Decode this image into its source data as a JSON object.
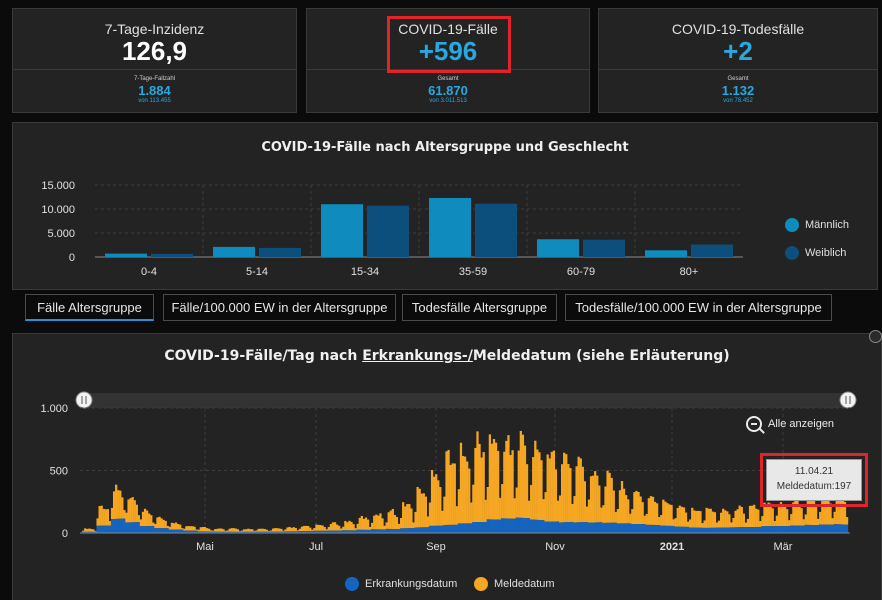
{
  "kpis": [
    {
      "title": "7-Tage-Inzidenz",
      "value": "126,9",
      "sublabel": "7-Tage-Fallzahl",
      "subvalue": "1.884",
      "subnote": "von 113.455",
      "value_color": "#ffffff"
    },
    {
      "title": "COVID-19-Fälle",
      "value": "+596",
      "sublabel": "Gesamt",
      "subvalue": "61.870",
      "subnote": "von 3.011.513",
      "value_color": "#29a8e0"
    },
    {
      "title": "COVID-19-Todesfälle",
      "value": "+2",
      "sublabel": "Gesamt",
      "subvalue": "1.132",
      "subnote": "von 78.452",
      "value_color": "#29a8e0"
    }
  ],
  "age_chart": {
    "title": "COVID-19-Fälle nach Altersgruppe und Geschlecht",
    "legend": [
      {
        "label": "Männlich",
        "color": "#0f8bbd"
      },
      {
        "label": "Weiblich",
        "color": "#0d4f7c"
      }
    ]
  },
  "tabs": [
    {
      "label": "Fälle Altersgruppe"
    },
    {
      "label": "Fälle/100.000 EW in der Altersgruppe"
    },
    {
      "label": "Todesfälle Altersgruppe"
    },
    {
      "label": "Todesfälle/100.000 EW in der Altersgruppe"
    }
  ],
  "daily_chart": {
    "title_before": "COVID-19-Fälle/Tag nach ",
    "title_link": "Erkrankungs-/",
    "title_after": "Meldedatum (siehe Erläuterung)",
    "zoom_label": "Alle anzeigen",
    "tooltip": {
      "date": "11.04.21",
      "label": "Meldedatum",
      "value": "197"
    },
    "legend": [
      {
        "label": "Erkrankungsdatum",
        "color": "#1565c0"
      },
      {
        "label": "Meldedatum",
        "color": "#f5a623"
      }
    ]
  },
  "chart_data": [
    {
      "type": "bar",
      "title": "COVID-19-Fälle nach Altersgruppe und Geschlecht",
      "categories": [
        "0-4",
        "5-14",
        "15-34",
        "35-59",
        "60-79",
        "80+"
      ],
      "series": [
        {
          "name": "Männlich",
          "values": [
            700,
            2100,
            11000,
            12300,
            3700,
            1400
          ]
        },
        {
          "name": "Weiblich",
          "values": [
            650,
            1900,
            10700,
            11100,
            3600,
            2600
          ]
        }
      ],
      "yticks": [
        "15.000",
        "10.000",
        "5.000",
        "0"
      ],
      "ylim": [
        0,
        15000
      ],
      "legend": "right"
    },
    {
      "type": "bar",
      "stacked": true,
      "title": "COVID-19-Fälle/Tag nach Erkrankungs-/Meldedatum (siehe Erläuterung)",
      "xticks": [
        "Mai",
        "Jul",
        "Sep",
        "Nov",
        "2021",
        "Mär"
      ],
      "yticks": [
        "1.000",
        "500",
        "0"
      ],
      "ylim": [
        0,
        1000
      ],
      "series": [
        {
          "name": "Erkrankungsdatum",
          "weekly_avg": [
            10,
            60,
            110,
            80,
            50,
            35,
            25,
            18,
            12,
            10,
            10,
            10,
            10,
            10,
            12,
            14,
            16,
            18,
            20,
            25,
            30,
            35,
            40,
            45,
            55,
            60,
            70,
            80,
            100,
            110,
            120,
            110,
            100,
            90,
            85,
            80,
            75,
            70,
            65,
            60,
            55,
            50,
            45,
            45,
            45,
            45,
            45,
            50,
            50,
            55,
            60,
            65,
            70
          ]
        },
        {
          "name": "Meldedatum",
          "weekly_avg": [
            20,
            120,
            180,
            140,
            90,
            60,
            40,
            30,
            25,
            20,
            20,
            18,
            18,
            20,
            25,
            30,
            35,
            45,
            55,
            75,
            95,
            110,
            150,
            230,
            340,
            430,
            470,
            490,
            500,
            480,
            470,
            450,
            430,
            400,
            370,
            320,
            270,
            220,
            190,
            170,
            150,
            130,
            120,
            115,
            110,
            120,
            130,
            135,
            145,
            150,
            160,
            170,
            197
          ]
        }
      ],
      "legend": "bottom"
    }
  ]
}
